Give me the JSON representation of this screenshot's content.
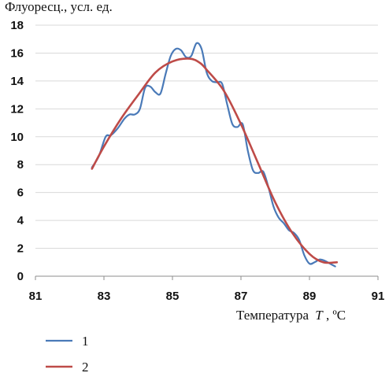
{
  "chart_data": {
    "type": "line",
    "ylabel": "Флуоресц., усл. ед.",
    "xlabel_main": "Температура",
    "xlabel_var": "T",
    "xlabel_unit": ", ºC",
    "xlim": [
      81,
      91
    ],
    "ylim": [
      0,
      18
    ],
    "x_ticks": [
      "81",
      "83",
      "85",
      "87",
      "89",
      "91"
    ],
    "y_ticks": [
      "0",
      "2",
      "4",
      "6",
      "8",
      "10",
      "12",
      "14",
      "16",
      "18"
    ],
    "x_tick_values": [
      81,
      83,
      85,
      87,
      89,
      91
    ],
    "y_tick_values": [
      0,
      2,
      4,
      6,
      8,
      10,
      12,
      14,
      16,
      18
    ],
    "grid": {
      "horizontal": true,
      "vertical": false
    },
    "legend_position": "bottom-left",
    "series": [
      {
        "name": "1",
        "color": "#4a7ab8",
        "x": [
          82.65,
          82.85,
          83.05,
          83.2,
          83.4,
          83.6,
          83.75,
          83.9,
          84.05,
          84.2,
          84.35,
          84.5,
          84.65,
          84.8,
          84.95,
          85.1,
          85.25,
          85.4,
          85.55,
          85.7,
          85.85,
          86.0,
          86.15,
          86.3,
          86.45,
          86.6,
          86.75,
          86.9,
          87.05,
          87.2,
          87.35,
          87.5,
          87.65,
          87.8,
          87.95,
          88.1,
          88.25,
          88.4,
          88.55,
          88.7,
          88.85,
          89.0,
          89.15,
          89.3,
          89.45,
          89.6,
          89.75
        ],
        "values": [
          7.8,
          8.6,
          10.0,
          10.1,
          10.6,
          11.3,
          11.6,
          11.6,
          12.0,
          13.5,
          13.6,
          13.2,
          13.1,
          14.5,
          15.8,
          16.3,
          16.2,
          15.7,
          15.8,
          16.7,
          16.3,
          14.6,
          14.0,
          13.9,
          13.8,
          12.3,
          10.9,
          10.7,
          10.9,
          9.0,
          7.6,
          7.4,
          7.5,
          6.4,
          5.0,
          4.2,
          3.8,
          3.3,
          3.1,
          2.6,
          1.5,
          0.9,
          1.0,
          1.2,
          1.1,
          0.9,
          0.7
        ]
      },
      {
        "name": "2",
        "color": "#be4b48",
        "x": [
          82.65,
          83.0,
          83.5,
          84.0,
          84.5,
          85.0,
          85.5,
          85.8,
          86.0,
          86.5,
          87.0,
          87.5,
          88.0,
          88.5,
          89.0,
          89.4,
          89.8
        ],
        "values": [
          7.7,
          9.3,
          11.3,
          13.0,
          14.6,
          15.4,
          15.6,
          15.3,
          14.8,
          13.3,
          10.9,
          8.1,
          5.3,
          3.1,
          1.6,
          1.0,
          1.0
        ]
      }
    ]
  }
}
